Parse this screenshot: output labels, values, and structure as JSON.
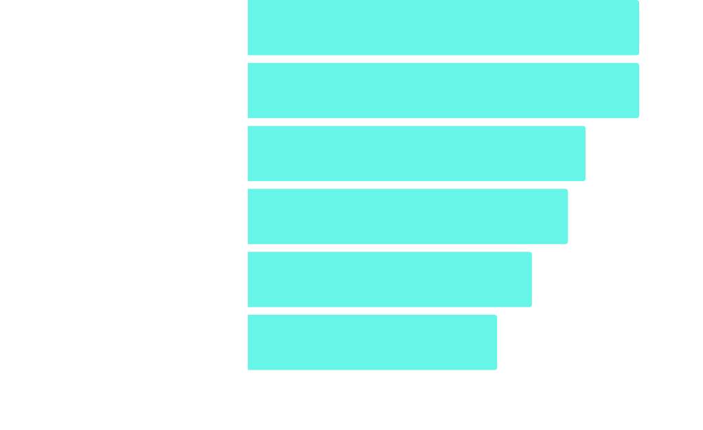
{
  "chart_data": {
    "type": "bar",
    "orientation": "horizontal",
    "categories": [
      null,
      null,
      null,
      null,
      null,
      null
    ],
    "values": [
      100,
      100,
      86.3,
      81.8,
      72.6,
      63.7
    ],
    "color": "#66f5e6",
    "xlim": [
      0,
      100
    ]
  }
}
